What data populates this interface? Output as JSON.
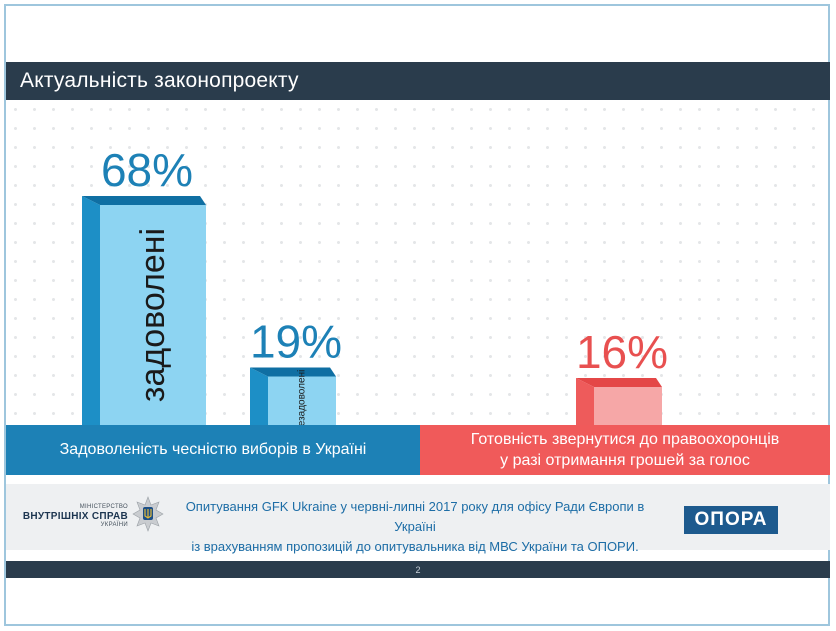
{
  "title": "Актуальність законопроекту",
  "chart_data": {
    "type": "bar",
    "groups": [
      {
        "label": "Задоволеність чеснiстю виборів в Україні",
        "color": "#1d81b6",
        "bars": [
          {
            "name": "задоволені",
            "value": 68,
            "display": "68%"
          },
          {
            "name": "незадоволені",
            "value": 19,
            "display": "19%"
          }
        ]
      },
      {
        "label_lines": [
          "Готовність звернутися до правоохоронців",
          "у разі отримання грошей  за голос"
        ],
        "color": "#f05a5a",
        "bars": [
          {
            "name": "",
            "value": 16,
            "display": "16%"
          }
        ]
      }
    ],
    "ylim": [
      0,
      100
    ],
    "colors": {
      "blue_front": "#8dd4f2",
      "blue_side": "#1d8fc6",
      "blue_top": "#0f6fa3",
      "blue_label": "#1d81b6",
      "red_front": "#f6a7a7",
      "red_side": "#ee5b5b",
      "red_top": "#e44747",
      "red_label": "#e85050"
    }
  },
  "footer": {
    "ministry_small": "МІНІСТЕРСТВО",
    "ministry_big": "ВНУТРІШНІХ СПРАВ",
    "ministry_country": "УКРАЇНИ",
    "source_line1": "Опитування GFK Ukraine у червні-липні 2017 року для офісу Ради Європи в Україні",
    "source_line2": "із врахуванням  пропозицій до опитувальника  від МВС України та ОПОРИ.",
    "opora_logo": "ОПОРА",
    "emblem_icon": "trident-star-icon"
  },
  "page_number": "2"
}
